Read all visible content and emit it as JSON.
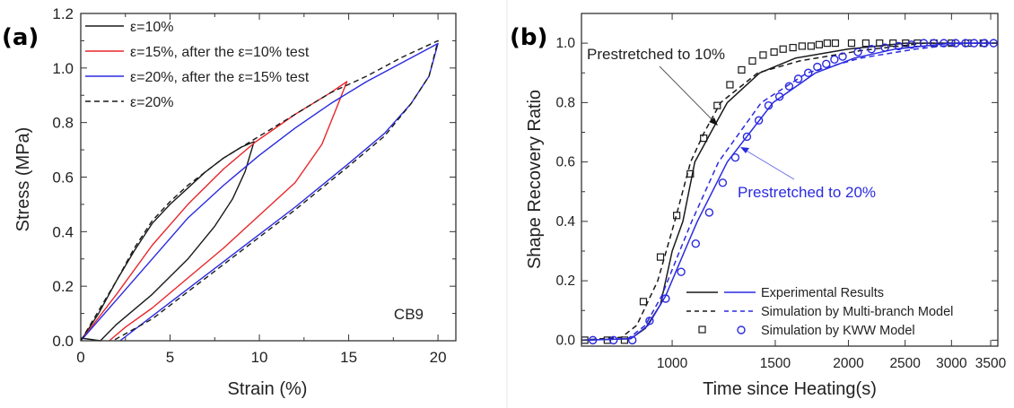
{
  "chart_data": [
    {
      "type": "line",
      "panel_label": "(a)",
      "xlabel": "Strain (%)",
      "ylabel": "Stress (MPa)",
      "xlim": [
        0,
        21
      ],
      "ylim": [
        0,
        1.2
      ],
      "xticks": [
        0,
        5,
        10,
        15,
        20
      ],
      "xtick_labels": [
        "0",
        "5",
        "10",
        "15",
        "20"
      ],
      "yticks": [
        0,
        0.2,
        0.4,
        0.6,
        0.8,
        1.0,
        1.2
      ],
      "ytick_labels": [
        "0.0",
        "0.2",
        "0.4",
        "0.6",
        "0.8",
        "1.0",
        "1.2"
      ],
      "grid": false,
      "legend_placement": "top-left",
      "annotation": "CB9",
      "series": [
        {
          "name": "ε=10%",
          "color": "#1a1a1a",
          "dash": false,
          "points": [
            [
              0,
              0
            ],
            [
              1,
              0.1
            ],
            [
              2,
              0.22
            ],
            [
              3,
              0.33
            ],
            [
              4,
              0.43
            ],
            [
              5,
              0.5
            ],
            [
              6,
              0.56
            ],
            [
              7,
              0.62
            ],
            [
              8,
              0.67
            ],
            [
              9,
              0.71
            ],
            [
              9.7,
              0.73
            ],
            [
              9.2,
              0.62
            ],
            [
              8.5,
              0.52
            ],
            [
              7.5,
              0.42
            ],
            [
              6,
              0.3
            ],
            [
              4,
              0.17
            ],
            [
              2,
              0.06
            ],
            [
              1.1,
              0
            ],
            [
              0,
              0.01
            ]
          ]
        },
        {
          "name": "ε=15%, after the ε=10% test",
          "color": "#e8262b",
          "dash": false,
          "points": [
            [
              0,
              0
            ],
            [
              2,
              0.17
            ],
            [
              4,
              0.35
            ],
            [
              6,
              0.5
            ],
            [
              8,
              0.63
            ],
            [
              9.8,
              0.73
            ],
            [
              12,
              0.83
            ],
            [
              14,
              0.91
            ],
            [
              14.9,
              0.95
            ],
            [
              14.3,
              0.85
            ],
            [
              13.5,
              0.72
            ],
            [
              12,
              0.58
            ],
            [
              10,
              0.46
            ],
            [
              8,
              0.34
            ],
            [
              6,
              0.23
            ],
            [
              4,
              0.12
            ],
            [
              2.5,
              0.05
            ],
            [
              1.6,
              0
            ]
          ]
        },
        {
          "name": "ε=20%, after the ε=15% test",
          "color": "#2a2ae0",
          "dash": false,
          "points": [
            [
              0,
              0
            ],
            [
              2,
              0.15
            ],
            [
              4,
              0.3
            ],
            [
              6,
              0.45
            ],
            [
              8,
              0.57
            ],
            [
              10,
              0.68
            ],
            [
              12,
              0.78
            ],
            [
              14,
              0.87
            ],
            [
              16,
              0.95
            ],
            [
              18,
              1.02
            ],
            [
              20,
              1.09
            ],
            [
              19.5,
              0.97
            ],
            [
              18.5,
              0.87
            ],
            [
              17,
              0.76
            ],
            [
              15,
              0.65
            ],
            [
              12,
              0.49
            ],
            [
              9,
              0.34
            ],
            [
              6,
              0.19
            ],
            [
              4,
              0.09
            ],
            [
              2.2,
              0
            ]
          ]
        },
        {
          "name": "ε=20%",
          "color": "#1a1a1a",
          "dash": true,
          "points": [
            [
              0,
              0
            ],
            [
              1,
              0.11
            ],
            [
              2,
              0.22
            ],
            [
              3,
              0.34
            ],
            [
              4,
              0.44
            ],
            [
              5,
              0.51
            ],
            [
              6,
              0.57
            ],
            [
              8,
              0.67
            ],
            [
              10,
              0.75
            ],
            [
              12,
              0.83
            ],
            [
              14,
              0.91
            ],
            [
              16,
              0.97
            ],
            [
              18,
              1.04
            ],
            [
              20,
              1.1
            ],
            [
              19.5,
              0.97
            ],
            [
              18.5,
              0.87
            ],
            [
              17,
              0.75
            ],
            [
              15,
              0.64
            ],
            [
              12,
              0.48
            ],
            [
              9,
              0.33
            ],
            [
              6,
              0.18
            ],
            [
              4,
              0.08
            ],
            [
              1.8,
              0
            ]
          ]
        }
      ]
    },
    {
      "type": "line",
      "panel_label": "(b)",
      "xlabel": "Time since Heating(s)",
      "ylabel": "Shape Recovery Ratio",
      "xscale": "log",
      "xlim": [
        700,
        3600
      ],
      "ylim": [
        -0.02,
        1.1
      ],
      "xticks": [
        1000,
        1500,
        2000,
        2500,
        3000,
        3500
      ],
      "xtick_labels": [
        "1000",
        "1500",
        "2000",
        "2500",
        "3000",
        "3500"
      ],
      "yticks": [
        0,
        0.2,
        0.4,
        0.6,
        0.8,
        1.0
      ],
      "ytick_labels": [
        "0.0",
        "0.2",
        "0.4",
        "0.6",
        "0.8",
        "1.0"
      ],
      "grid": false,
      "legend_placement": "bottom-right",
      "legend": [
        "Experimental Results",
        "Simulation by Multi-branch Model",
        "Simulation by KWW Model"
      ],
      "annotations": [
        "Prestretched to 10%",
        "Prestretched to 20%"
      ],
      "series": [
        {
          "group": "Prestretched to 10%",
          "kind": "Experimental Results",
          "color": "#1a1a1a",
          "style": "solid",
          "points": [
            [
              700,
              0
            ],
            [
              850,
              0.005
            ],
            [
              900,
              0.04
            ],
            [
              955,
              0.12
            ],
            [
              1000,
              0.3
            ],
            [
              1043,
              0.4
            ],
            [
              1093,
              0.6
            ],
            [
              1165,
              0.7
            ],
            [
              1242,
              0.8
            ],
            [
              1411,
              0.9
            ],
            [
              1626,
              0.95
            ],
            [
              1997,
              0.98
            ],
            [
              2500,
              1.0
            ],
            [
              3600,
              1.0
            ]
          ]
        },
        {
          "group": "Prestretched to 10%",
          "kind": "Simulation by Multi-branch Model",
          "color": "#1a1a1a",
          "style": "dashed",
          "points": [
            [
              700,
              0
            ],
            [
              820,
              0.01
            ],
            [
              870,
              0.05
            ],
            [
              945,
              0.2
            ],
            [
              1010,
              0.4
            ],
            [
              1075,
              0.6
            ],
            [
              1135,
              0.7
            ],
            [
              1210,
              0.8
            ],
            [
              1400,
              0.9
            ],
            [
              1650,
              0.94
            ],
            [
              2100,
              0.975
            ],
            [
              2700,
              1.0
            ],
            [
              3600,
              1.0
            ]
          ]
        },
        {
          "group": "Prestretched to 10%",
          "kind": "Simulation by KWW Model",
          "color": "#1a1a1a",
          "style": "square",
          "points": [
            [
              709,
              0
            ],
            [
              775,
              0
            ],
            [
              829,
              0
            ],
            [
              893,
              0.13
            ],
            [
              955,
              0.28
            ],
            [
              1018,
              0.42
            ],
            [
              1074,
              0.56
            ],
            [
              1132,
              0.68
            ],
            [
              1194,
              0.79
            ],
            [
              1255,
              0.86
            ],
            [
              1314,
              0.91
            ],
            [
              1371,
              0.94
            ],
            [
              1430,
              0.96
            ],
            [
              1493,
              0.97
            ],
            [
              1547,
              0.98
            ],
            [
              1608,
              0.985
            ],
            [
              1667,
              0.99
            ],
            [
              1727,
              0.99
            ],
            [
              1783,
              0.995
            ],
            [
              1840,
              1.0
            ],
            [
              1900,
              1.0
            ],
            [
              2025,
              1.0
            ],
            [
              2142,
              1.0
            ],
            [
              2261,
              1.0
            ],
            [
              2384,
              1.0
            ],
            [
              2505,
              1.0
            ],
            [
              2624,
              1.0
            ],
            [
              2800,
              1.0
            ],
            [
              3000,
              1.0
            ],
            [
              3200,
              1.0
            ],
            [
              3400,
              1.0
            ]
          ]
        },
        {
          "group": "Prestretched to 20%",
          "kind": "Experimental Results",
          "color": "#2a2ae0",
          "style": "solid",
          "points": [
            [
              700,
              0
            ],
            [
              850,
              0.005
            ],
            [
              910,
              0.05
            ],
            [
              975,
              0.15
            ],
            [
              1050,
              0.3
            ],
            [
              1104,
              0.4
            ],
            [
              1242,
              0.6
            ],
            [
              1487,
              0.8
            ],
            [
              1757,
              0.9
            ],
            [
              2050,
              0.95
            ],
            [
              2400,
              0.98
            ],
            [
              3000,
              1.0
            ],
            [
              3600,
              1.0
            ]
          ]
        },
        {
          "group": "Prestretched to 20%",
          "kind": "Simulation by Multi-branch Model",
          "color": "#2a2ae0",
          "style": "dashed",
          "points": [
            [
              700,
              0
            ],
            [
              840,
              0.005
            ],
            [
              900,
              0.05
            ],
            [
              960,
              0.15
            ],
            [
              1030,
              0.3
            ],
            [
              1080,
              0.4
            ],
            [
              1200,
              0.6
            ],
            [
              1420,
              0.8
            ],
            [
              1700,
              0.9
            ],
            [
              2100,
              0.95
            ],
            [
              2600,
              0.98
            ],
            [
              3200,
              1.0
            ],
            [
              3600,
              1.0
            ]
          ]
        },
        {
          "group": "Prestretched to 20%",
          "kind": "Simulation by KWW Model",
          "color": "#2a2ae0",
          "style": "circle",
          "points": [
            [
              732,
              0
            ],
            [
              794,
              0
            ],
            [
              855,
              0
            ],
            [
              915,
              0.065
            ],
            [
              975,
              0.14
            ],
            [
              1036,
              0.23
            ],
            [
              1097,
              0.325
            ],
            [
              1157,
              0.43
            ],
            [
              1220,
              0.53
            ],
            [
              1282,
              0.615
            ],
            [
              1342,
              0.685
            ],
            [
              1406,
              0.74
            ],
            [
              1461,
              0.79
            ],
            [
              1525,
              0.82
            ],
            [
              1584,
              0.855
            ],
            [
              1642,
              0.88
            ],
            [
              1708,
              0.9
            ],
            [
              1770,
              0.92
            ],
            [
              1833,
              0.93
            ],
            [
              1893,
              0.945
            ],
            [
              1955,
              0.955
            ],
            [
              2076,
              0.97
            ],
            [
              2190,
              0.98
            ],
            [
              2309,
              0.985
            ],
            [
              2437,
              0.99
            ],
            [
              2561,
              0.995
            ],
            [
              2690,
              1.0
            ],
            [
              2798,
              1.0
            ],
            [
              2911,
              1.0
            ],
            [
              3049,
              1.0
            ],
            [
              3170,
              1.0
            ],
            [
              3279,
              1.0
            ],
            [
              3416,
              1.0
            ],
            [
              3540,
              1.0
            ]
          ]
        }
      ]
    }
  ]
}
